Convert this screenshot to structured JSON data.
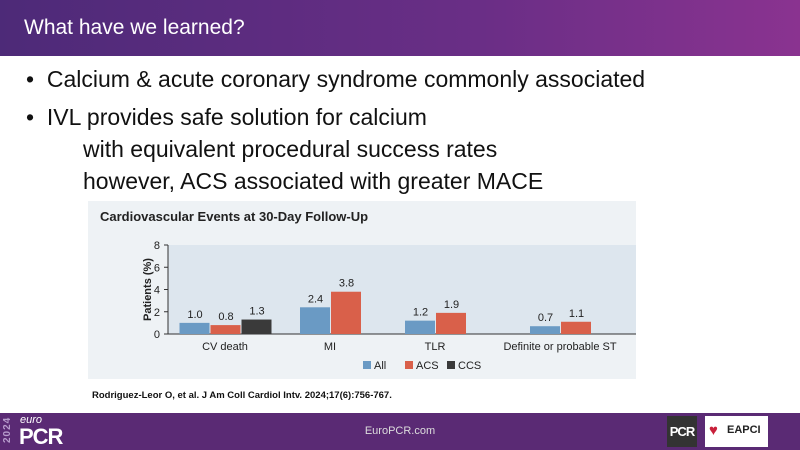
{
  "header": {
    "title": "What have we learned?"
  },
  "bullets": [
    {
      "text": "Calcium & acute coronary syndrome commonly associated"
    },
    {
      "text": "IVL provides safe solution for calcium"
    },
    {
      "text": "with equivalent procedural success rates"
    },
    {
      "text": "however, ACS associated with greater MACE"
    }
  ],
  "chart_data": {
    "type": "bar",
    "title": "Cardiovascular Events at 30-Day Follow-Up",
    "ylabel": "Patients (%)",
    "ylim": [
      0,
      8
    ],
    "yticks": [
      0,
      2,
      4,
      6,
      8
    ],
    "categories": [
      "CV death",
      "MI",
      "TLR",
      "Definite or probable ST"
    ],
    "series": [
      {
        "name": "All",
        "color": "#6a9ac4",
        "values": [
          1.0,
          2.4,
          1.2,
          0.7
        ]
      },
      {
        "name": "ACS",
        "color": "#d9604a",
        "values": [
          0.8,
          3.8,
          1.9,
          1.1
        ]
      },
      {
        "name": "CCS",
        "color": "#3a3a3a",
        "values": [
          1.3,
          null,
          null,
          null
        ]
      }
    ],
    "legend": "bottom-right"
  },
  "citation": "Rodriguez-Leor O, et al. J Am Coll Cardiol Intv. 2024;17(6):756-767.",
  "footer": {
    "year": "2024",
    "logo_small": "euro",
    "logo": "PCR",
    "url": "EuroPCR.com",
    "pcr": "PCR",
    "eapci": "EAPCI"
  }
}
